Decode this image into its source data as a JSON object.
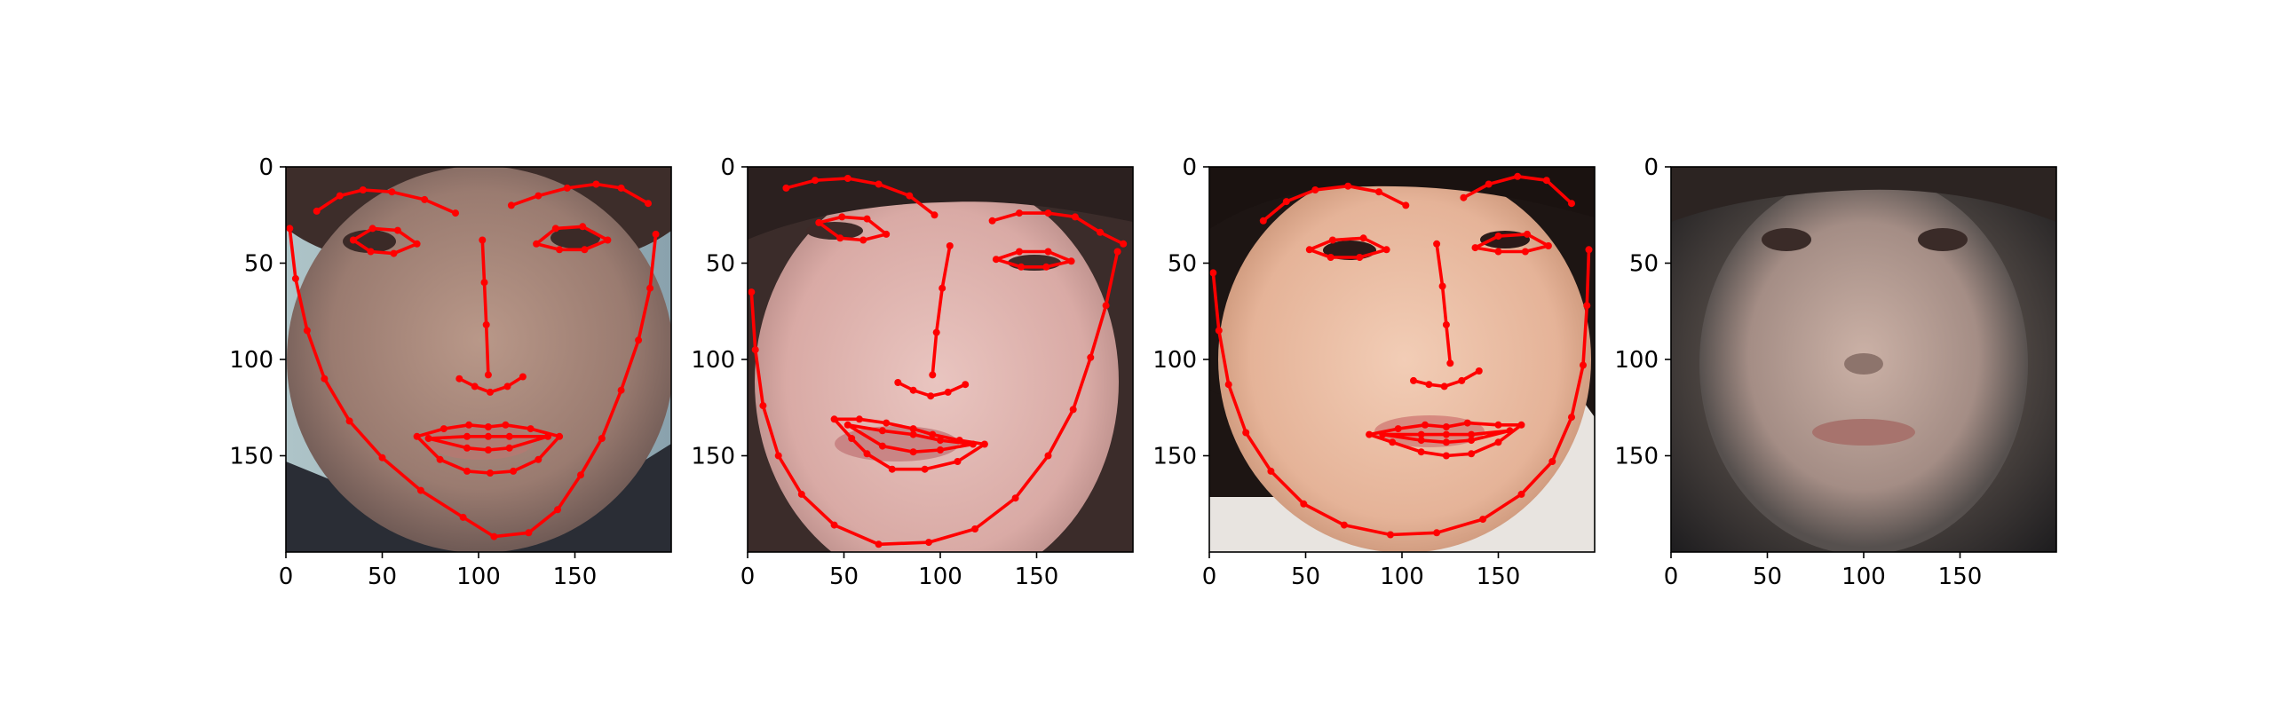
{
  "chart_data": [
    {
      "type": "image",
      "xticks": [
        "0",
        "50",
        "100",
        "150"
      ],
      "yticks": [
        "0",
        "50",
        "100",
        "150"
      ],
      "xlim": [
        0,
        200
      ],
      "ylim": [
        200,
        0
      ],
      "landmark_color": "#ff0000",
      "landmarks": {
        "jaw": [
          [
            2,
            32
          ],
          [
            5,
            58
          ],
          [
            11,
            85
          ],
          [
            20,
            110
          ],
          [
            33,
            132
          ],
          [
            50,
            151
          ],
          [
            70,
            168
          ],
          [
            92,
            182
          ],
          [
            108,
            192
          ],
          [
            126,
            190
          ],
          [
            141,
            178
          ],
          [
            153,
            160
          ],
          [
            164,
            141
          ],
          [
            174,
            116
          ],
          [
            183,
            90
          ],
          [
            189,
            63
          ],
          [
            192,
            35
          ]
        ],
        "brow_left": [
          [
            16,
            23
          ],
          [
            28,
            15
          ],
          [
            40,
            12
          ],
          [
            55,
            13
          ],
          [
            72,
            17
          ],
          [
            88,
            24
          ]
        ],
        "brow_right": [
          [
            117,
            20
          ],
          [
            131,
            15
          ],
          [
            146,
            11
          ],
          [
            161,
            9
          ],
          [
            174,
            11
          ],
          [
            188,
            19
          ]
        ],
        "nose": [
          [
            102,
            38
          ],
          [
            103,
            60
          ],
          [
            104,
            82
          ],
          [
            105,
            108
          ]
        ],
        "nose_base": [
          [
            90,
            110
          ],
          [
            98,
            114
          ],
          [
            106,
            117
          ],
          [
            115,
            114
          ],
          [
            123,
            109
          ]
        ],
        "eye_left": [
          [
            35,
            38
          ],
          [
            45,
            32
          ],
          [
            58,
            33
          ],
          [
            68,
            40
          ],
          [
            56,
            45
          ],
          [
            44,
            44
          ]
        ],
        "eye_right": [
          [
            130,
            40
          ],
          [
            140,
            32
          ],
          [
            154,
            31
          ],
          [
            167,
            38
          ],
          [
            155,
            43
          ],
          [
            142,
            43
          ]
        ],
        "mouth_outer": [
          [
            68,
            140
          ],
          [
            82,
            136
          ],
          [
            95,
            134
          ],
          [
            105,
            135
          ],
          [
            114,
            134
          ],
          [
            127,
            136
          ],
          [
            142,
            140
          ],
          [
            131,
            152
          ],
          [
            118,
            158
          ],
          [
            106,
            159
          ],
          [
            94,
            158
          ],
          [
            80,
            152
          ]
        ],
        "mouth_inner": [
          [
            74,
            141
          ],
          [
            94,
            140
          ],
          [
            105,
            140
          ],
          [
            116,
            140
          ],
          [
            136,
            140
          ],
          [
            116,
            146
          ],
          [
            105,
            147
          ],
          [
            94,
            146
          ]
        ]
      }
    },
    {
      "type": "image",
      "xticks": [
        "0",
        "50",
        "100",
        "150"
      ],
      "yticks": [
        "0",
        "50",
        "100",
        "150"
      ],
      "xlim": [
        0,
        200
      ],
      "ylim": [
        200,
        0
      ],
      "landmark_color": "#ff0000",
      "landmarks": {
        "jaw": [
          [
            2,
            65
          ],
          [
            4,
            95
          ],
          [
            8,
            124
          ],
          [
            16,
            150
          ],
          [
            28,
            170
          ],
          [
            45,
            186
          ],
          [
            68,
            196
          ],
          [
            94,
            195
          ],
          [
            118,
            188
          ],
          [
            139,
            172
          ],
          [
            156,
            150
          ],
          [
            169,
            126
          ],
          [
            178,
            99
          ],
          [
            186,
            72
          ],
          [
            192,
            44
          ]
        ],
        "brow_left": [
          [
            20,
            11
          ],
          [
            35,
            7
          ],
          [
            52,
            6
          ],
          [
            68,
            9
          ],
          [
            84,
            15
          ],
          [
            97,
            25
          ]
        ],
        "brow_right": [
          [
            127,
            28
          ],
          [
            141,
            24
          ],
          [
            156,
            24
          ],
          [
            170,
            26
          ],
          [
            183,
            34
          ],
          [
            195,
            40
          ]
        ],
        "nose": [
          [
            105,
            41
          ],
          [
            101,
            63
          ],
          [
            98,
            86
          ],
          [
            96,
            108
          ]
        ],
        "nose_base": [
          [
            78,
            112
          ],
          [
            86,
            116
          ],
          [
            95,
            119
          ],
          [
            104,
            117
          ],
          [
            113,
            113
          ]
        ],
        "eye_left": [
          [
            37,
            29
          ],
          [
            49,
            26
          ],
          [
            62,
            27
          ],
          [
            72,
            35
          ],
          [
            60,
            38
          ],
          [
            48,
            37
          ]
        ],
        "eye_right": [
          [
            129,
            48
          ],
          [
            141,
            44
          ],
          [
            156,
            44
          ],
          [
            168,
            49
          ],
          [
            155,
            52
          ],
          [
            142,
            52
          ]
        ],
        "mouth_outer": [
          [
            45,
            131
          ],
          [
            58,
            131
          ],
          [
            72,
            133
          ],
          [
            86,
            136
          ],
          [
            96,
            139
          ],
          [
            110,
            142
          ],
          [
            123,
            144
          ],
          [
            109,
            153
          ],
          [
            92,
            157
          ],
          [
            75,
            157
          ],
          [
            62,
            149
          ],
          [
            54,
            141
          ]
        ],
        "mouth_inner": [
          [
            52,
            134
          ],
          [
            70,
            137
          ],
          [
            86,
            139
          ],
          [
            100,
            142
          ],
          [
            117,
            144
          ],
          [
            100,
            147
          ],
          [
            86,
            148
          ],
          [
            70,
            145
          ]
        ]
      }
    },
    {
      "type": "image",
      "xticks": [
        "0",
        "50",
        "100",
        "150"
      ],
      "yticks": [
        "0",
        "50",
        "100",
        "150"
      ],
      "xlim": [
        0,
        200
      ],
      "ylim": [
        200,
        0
      ],
      "landmark_color": "#ff0000",
      "landmarks": {
        "jaw": [
          [
            2,
            55
          ],
          [
            5,
            85
          ],
          [
            10,
            113
          ],
          [
            19,
            138
          ],
          [
            32,
            158
          ],
          [
            49,
            175
          ],
          [
            70,
            186
          ],
          [
            94,
            191
          ],
          [
            118,
            190
          ],
          [
            142,
            183
          ],
          [
            162,
            170
          ],
          [
            178,
            153
          ],
          [
            188,
            130
          ],
          [
            194,
            103
          ],
          [
            196,
            72
          ],
          [
            197,
            43
          ]
        ],
        "brow_left": [
          [
            28,
            28
          ],
          [
            40,
            18
          ],
          [
            55,
            12
          ],
          [
            72,
            10
          ],
          [
            88,
            13
          ],
          [
            102,
            20
          ]
        ],
        "brow_right": [
          [
            132,
            16
          ],
          [
            145,
            9
          ],
          [
            160,
            5
          ],
          [
            175,
            7
          ],
          [
            188,
            19
          ]
        ],
        "nose": [
          [
            118,
            40
          ],
          [
            121,
            62
          ],
          [
            123,
            82
          ],
          [
            125,
            102
          ]
        ],
        "nose_base": [
          [
            106,
            111
          ],
          [
            114,
            113
          ],
          [
            122,
            114
          ],
          [
            131,
            111
          ],
          [
            140,
            106
          ]
        ],
        "eye_left": [
          [
            52,
            43
          ],
          [
            64,
            38
          ],
          [
            80,
            37
          ],
          [
            92,
            43
          ],
          [
            78,
            47
          ],
          [
            63,
            47
          ]
        ],
        "eye_right": [
          [
            138,
            42
          ],
          [
            150,
            36
          ],
          [
            165,
            35
          ],
          [
            176,
            41
          ],
          [
            164,
            44
          ],
          [
            150,
            44
          ]
        ],
        "mouth_outer": [
          [
            83,
            139
          ],
          [
            98,
            136
          ],
          [
            112,
            134
          ],
          [
            123,
            135
          ],
          [
            134,
            133
          ],
          [
            150,
            134
          ],
          [
            162,
            134
          ],
          [
            150,
            143
          ],
          [
            136,
            149
          ],
          [
            123,
            150
          ],
          [
            110,
            148
          ],
          [
            95,
            143
          ]
        ],
        "mouth_inner": [
          [
            90,
            139
          ],
          [
            110,
            139
          ],
          [
            123,
            139
          ],
          [
            136,
            139
          ],
          [
            156,
            137
          ],
          [
            136,
            142
          ],
          [
            123,
            143
          ],
          [
            110,
            142
          ]
        ]
      }
    },
    {
      "type": "image",
      "xticks": [
        "0",
        "50",
        "100",
        "150"
      ],
      "yticks": [
        "0",
        "50",
        "100",
        "150"
      ],
      "xlim": [
        0,
        200
      ],
      "ylim": [
        200,
        0
      ],
      "landmark_color": "#ff0000",
      "landmarks": {}
    }
  ]
}
